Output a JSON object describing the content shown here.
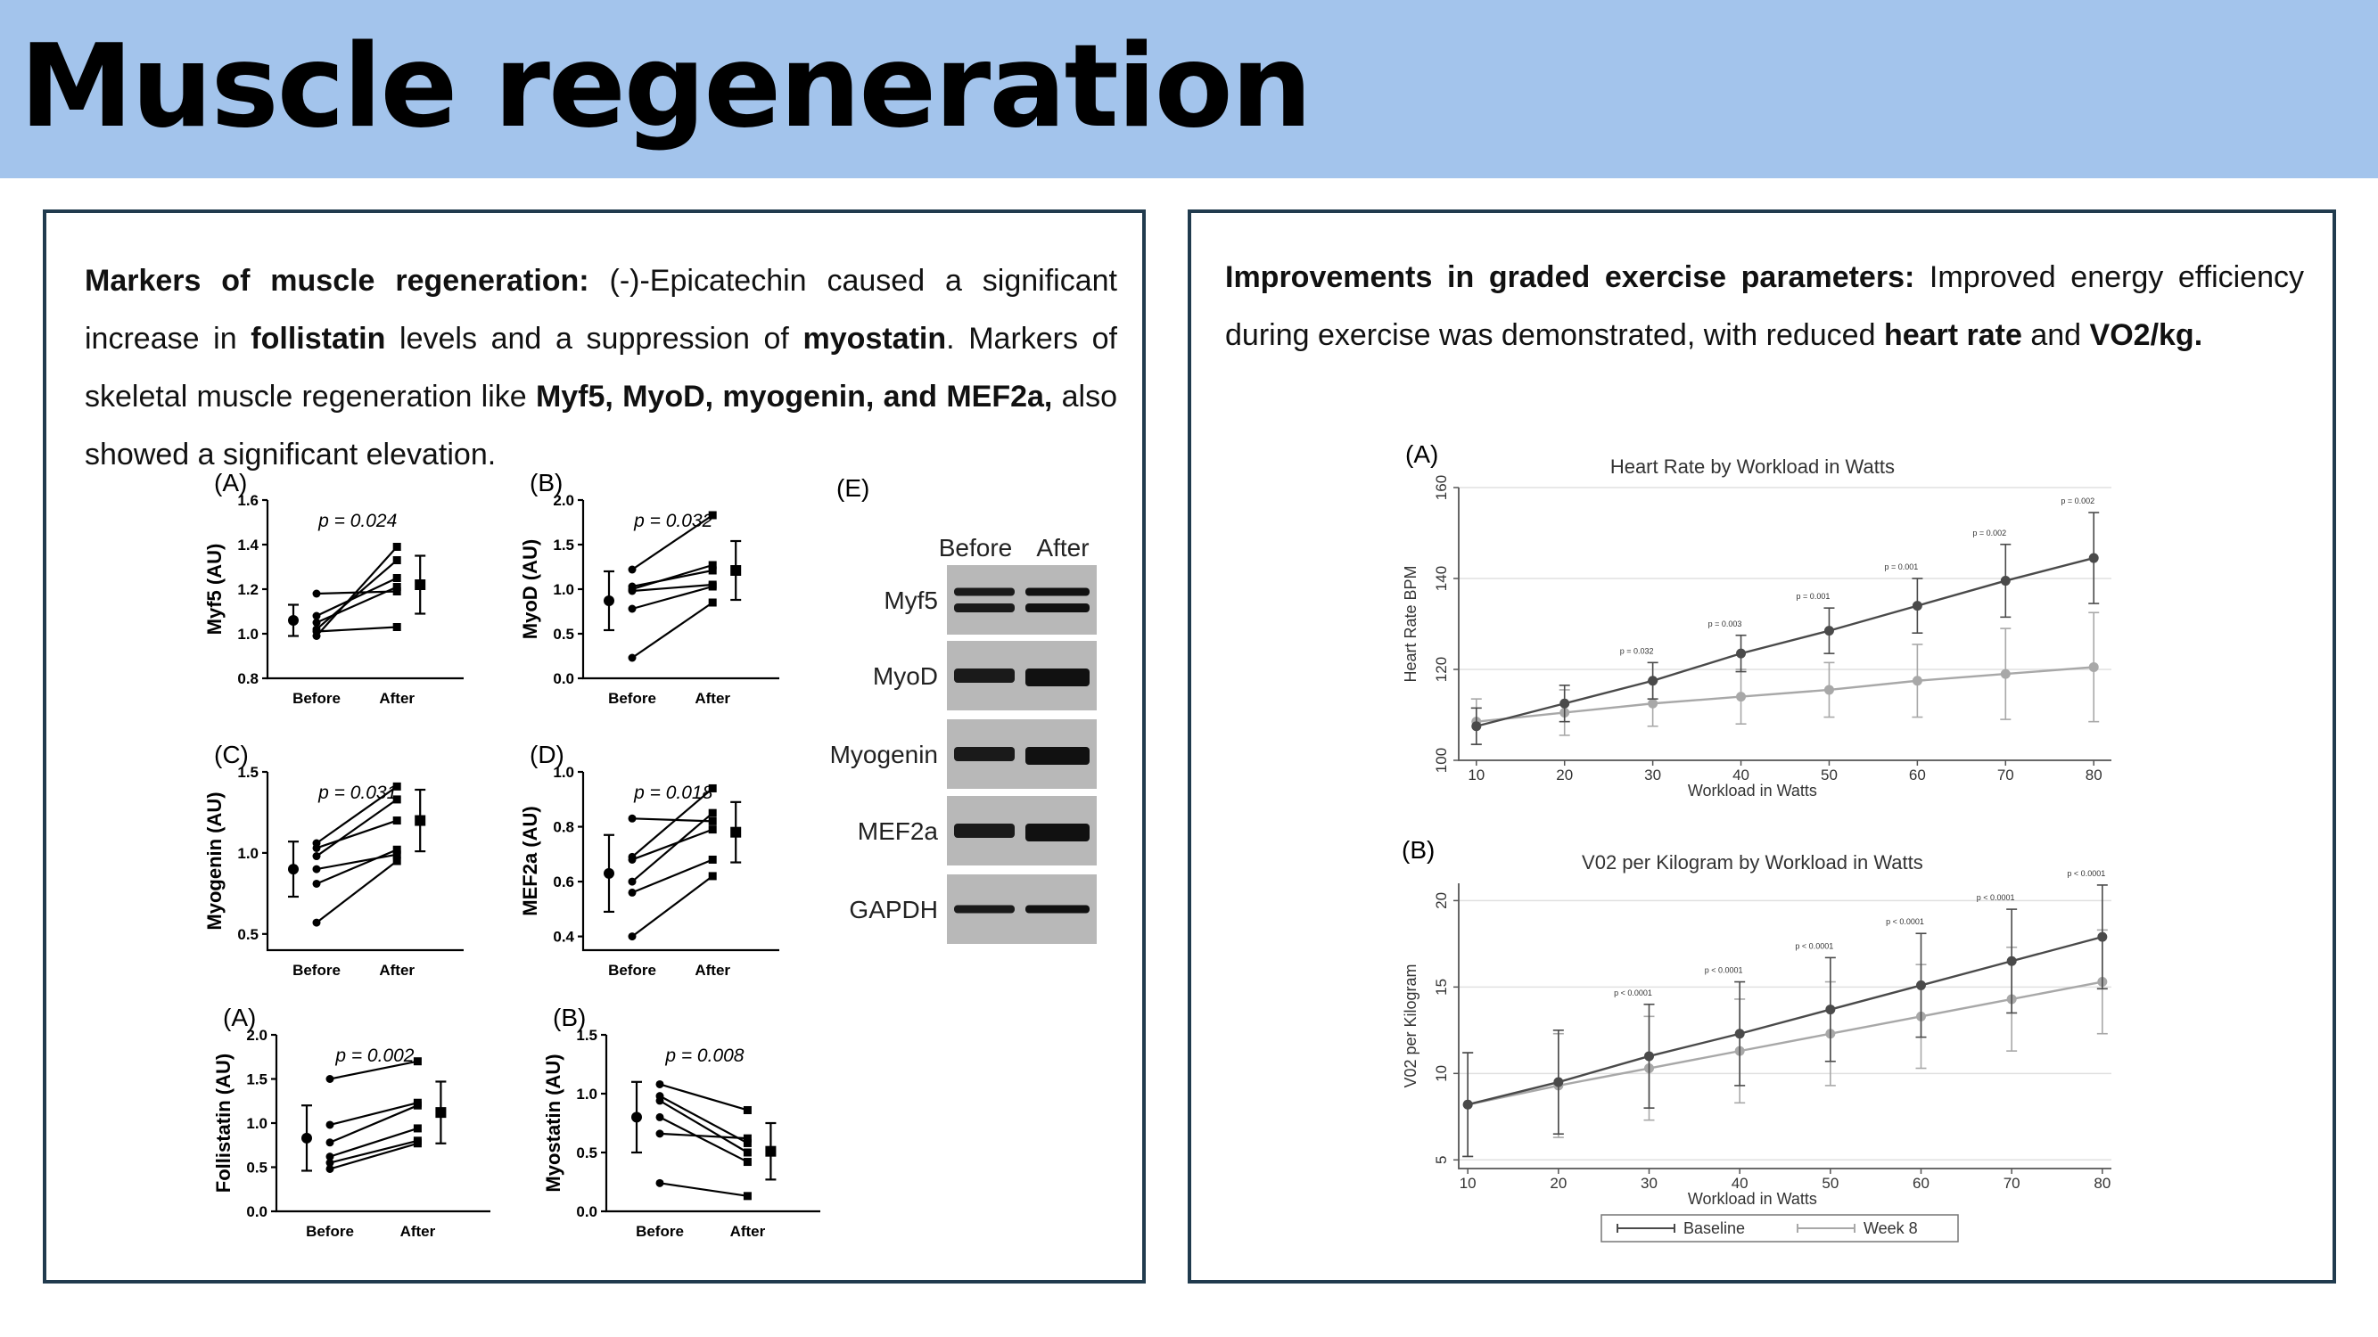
{
  "slide": {
    "title": "Muscle regeneration"
  },
  "left": {
    "text": {
      "lead_bold": "Markers of muscle regeneration:",
      "s1": " (-)-Epicatechin caused a significant increase in ",
      "b1": "follistatin",
      "s2": " levels and a suppression of ",
      "b2": "myostatin",
      "s3": ". Markers of skeletal muscle regeneration like ",
      "b3": "Myf5, MyoD, myogenin, and MEF2a,",
      "s4": " also showed a significant elevation."
    },
    "plots": [
      {
        "letter": "(A)",
        "ylabel": "Myf5 (AU)",
        "p": "p = 0.024",
        "yticks": [
          "0.8",
          "1.0",
          "1.2",
          "1.4",
          "1.6"
        ],
        "ymin": 0.8,
        "ymax": 1.6,
        "pairs": [
          [
            1.18,
            1.19
          ],
          [
            1.08,
            1.25
          ],
          [
            1.05,
            1.21
          ],
          [
            1.02,
            1.33
          ],
          [
            0.99,
            1.39
          ],
          [
            1.01,
            1.03
          ]
        ],
        "before_mean": 1.06,
        "before_sd": 0.07,
        "after_mean": 1.22,
        "after_sd": 0.13
      },
      {
        "letter": "(B)",
        "ylabel": "MyoD (AU)",
        "p": "p = 0.032",
        "yticks": [
          "0.0",
          "0.5",
          "1.0",
          "1.5",
          "2.0"
        ],
        "ymin": 0,
        "ymax": 2,
        "pairs": [
          [
            1.22,
            1.83
          ],
          [
            1.03,
            1.21
          ],
          [
            1.0,
            1.27
          ],
          [
            0.98,
            1.05
          ],
          [
            0.78,
            1.03
          ],
          [
            0.23,
            0.85
          ]
        ],
        "before_mean": 0.87,
        "before_sd": 0.33,
        "after_mean": 1.21,
        "after_sd": 0.33
      },
      {
        "letter": "(C)",
        "ylabel": "Myogenin (AU)",
        "p": "p = 0.031",
        "yticks": [
          "0.5",
          "1.0",
          "1.5"
        ],
        "ymin": 0.4,
        "ymax": 1.5,
        "pairs": [
          [
            1.06,
            1.41
          ],
          [
            1.03,
            1.2
          ],
          [
            0.98,
            1.33
          ],
          [
            0.9,
            0.99
          ],
          [
            0.81,
            1.02
          ],
          [
            0.57,
            0.95
          ]
        ],
        "before_mean": 0.9,
        "before_sd": 0.17,
        "after_mean": 1.2,
        "after_sd": 0.19
      },
      {
        "letter": "(D)",
        "ylabel": "MEF2a (AU)",
        "p": "p = 0.018",
        "yticks": [
          "0.4",
          "0.6",
          "0.8",
          "1.0"
        ],
        "ymin": 0.35,
        "ymax": 1.0,
        "pairs": [
          [
            0.83,
            0.82
          ],
          [
            0.69,
            0.94
          ],
          [
            0.68,
            0.79
          ],
          [
            0.6,
            0.85
          ],
          [
            0.56,
            0.68
          ],
          [
            0.4,
            0.62
          ]
        ],
        "before_mean": 0.63,
        "before_sd": 0.14,
        "after_mean": 0.78,
        "after_sd": 0.11
      },
      {
        "letter": "(A)",
        "ylabel": "Follistatin (AU)",
        "p": "p = 0.002",
        "yticks": [
          "0.0",
          "0.5",
          "1.0",
          "1.5",
          "2.0"
        ],
        "ymin": 0,
        "ymax": 2,
        "pairs": [
          [
            1.5,
            1.7
          ],
          [
            0.98,
            1.23
          ],
          [
            0.78,
            1.2
          ],
          [
            0.62,
            0.94
          ],
          [
            0.55,
            0.8
          ],
          [
            0.48,
            0.77
          ]
        ],
        "before_mean": 0.83,
        "before_sd": 0.37,
        "after_mean": 1.12,
        "after_sd": 0.35
      },
      {
        "letter": "(B)",
        "ylabel": "Myostatin (AU)",
        "p": "p = 0.008",
        "yticks": [
          "0.0",
          "0.5",
          "1.0",
          "1.5"
        ],
        "ymin": 0,
        "ymax": 1.5,
        "pairs": [
          [
            1.08,
            0.86
          ],
          [
            0.98,
            0.58
          ],
          [
            0.94,
            0.5
          ],
          [
            0.8,
            0.42
          ],
          [
            0.66,
            0.62
          ],
          [
            0.24,
            0.13
          ]
        ],
        "before_mean": 0.8,
        "before_sd": 0.3,
        "after_mean": 0.51,
        "after_sd": 0.24
      }
    ],
    "xcats": [
      "Before",
      "After"
    ],
    "blot": {
      "letter": "(E)",
      "cols": [
        "Before",
        "After"
      ],
      "rows": [
        {
          "label": "Myf5",
          "style": "double"
        },
        {
          "label": "MyoD",
          "style": "wide"
        },
        {
          "label": "Myogenin",
          "style": "wide"
        },
        {
          "label": "MEF2a",
          "style": "wide"
        },
        {
          "label": "GAPDH",
          "style": "thin"
        }
      ]
    }
  },
  "right": {
    "text": {
      "lead_bold": "Improvements in graded exercise parameters:",
      "s1": " Improved energy efficiency during exercise was demonstrated, with reduced ",
      "b1": "heart rate",
      "s2": " and ",
      "b2": "VO2/kg."
    },
    "chart_data": [
      {
        "type": "line",
        "letter": "(A)",
        "title": "Heart Rate by Workload in Watts",
        "xlabel": "Workload in Watts",
        "ylabel": "Heart Rate BPM",
        "x": [
          10,
          20,
          30,
          40,
          50,
          60,
          70,
          80
        ],
        "xlim": [
          8,
          82
        ],
        "ylim": [
          100,
          160
        ],
        "yticks": [
          100,
          120,
          140,
          160
        ],
        "ytick_labels": [
          "100",
          "120",
          "140",
          "160"
        ],
        "pvalues": [
          "",
          "",
          "p = 0.032",
          "p = 0.003",
          "p = 0.001",
          "p = 0.001",
          "p = 0.002",
          "p = 0.002"
        ],
        "series": [
          {
            "name": "Baseline",
            "color": "#4a4a4a",
            "values": [
              107.5,
              112.5,
              117.5,
              123.5,
              128.5,
              134,
              139.5,
              144.5
            ],
            "err": [
              4,
              4,
              4,
              4,
              5,
              6,
              8,
              10
            ]
          },
          {
            "name": "Week 8",
            "color": "#a8a8a8",
            "values": [
              108.5,
              110.5,
              112.5,
              114,
              115.5,
              117.5,
              119,
              120.5
            ],
            "err": [
              5,
              5,
              5,
              6,
              6,
              8,
              10,
              12
            ]
          }
        ]
      },
      {
        "type": "line",
        "letter": "(B)",
        "title": "V02 per Kilogram by Workload in Watts",
        "xlabel": "Workload in Watts",
        "ylabel": "V02 per Kilogram",
        "x": [
          10,
          20,
          30,
          40,
          50,
          60,
          70,
          80
        ],
        "xlim": [
          9,
          81
        ],
        "ylim": [
          4.5,
          21
        ],
        "yticks": [
          5,
          10,
          15,
          20
        ],
        "ytick_labels": [
          "5",
          "10",
          "15",
          "20"
        ],
        "pvalues": [
          "",
          "",
          "p < 0.0001",
          "p < 0.0001",
          "p < 0.0001",
          "p < 0.0001",
          "p < 0.0001",
          "p < 0.0001"
        ],
        "series": [
          {
            "name": "Baseline",
            "color": "#4a4a4a",
            "values": [
              8.2,
              9.5,
              11,
              12.3,
              13.7,
              15.1,
              16.5,
              17.9
            ],
            "err": [
              3,
              3,
              3,
              3,
              3,
              3,
              3,
              3
            ]
          },
          {
            "name": "Week 8",
            "color": "#a8a8a8",
            "values": [
              8.2,
              9.3,
              10.3,
              11.3,
              12.3,
              13.3,
              14.3,
              15.3
            ],
            "err": [
              3,
              3,
              3,
              3,
              3,
              3,
              3,
              3
            ]
          }
        ],
        "legend": [
          "Baseline",
          "Week 8"
        ]
      }
    ]
  }
}
